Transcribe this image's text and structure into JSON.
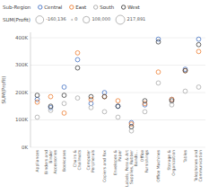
{
  "chart_data": {
    "type": "scatter",
    "legend_title": "Sub-Region",
    "y_label": "SUM(Profit)",
    "categories": [
      "Appliances",
      "Binders and\nBinder\nAccessories",
      "Bookcases",
      "Chairs &\nChailmats",
      "Computer\nPeripherals",
      "Copiers and Fax",
      "Envelopes &\nPaper",
      "Labels, Pens & Art\nSupplies, Rubber\nBands...",
      "Office\nFurnishings",
      "Office Machines",
      "Storage &\nOrganization",
      "Tables",
      "Telephones and\nCommunication"
    ],
    "series": [
      {
        "name": "Central",
        "color": "#4472C4",
        "values": [
          175000,
          145000,
          220000,
          320000,
          160000,
          200000,
          150000,
          90000,
          155000,
          395000,
          175000,
          285000,
          395000
        ]
      },
      {
        "name": "East",
        "color": "#ED7D31",
        "values": [
          165000,
          185000,
          125000,
          345000,
          175000,
          185000,
          170000,
          85000,
          160000,
          275000,
          175000,
          280000,
          350000
        ]
      },
      {
        "name": "South",
        "color": "#AAAAAA",
        "values": [
          110000,
          135000,
          160000,
          180000,
          145000,
          130000,
          110000,
          60000,
          130000,
          235000,
          155000,
          205000,
          220000
        ]
      },
      {
        "name": "West",
        "color": "#404040",
        "values": [
          190000,
          150000,
          190000,
          290000,
          185000,
          185000,
          150000,
          75000,
          170000,
          385000,
          170000,
          280000,
          375000
        ]
      }
    ],
    "size_legend": {
      "title": "SUM(Profit)",
      "items": [
        {
          "value": -160136,
          "label": "-160,136"
        },
        {
          "value": 0,
          "label": "0"
        },
        {
          "value": 108000,
          "label": "108,000"
        },
        {
          "value": 217891,
          "label": "217,891"
        }
      ]
    },
    "ylim": [
      0,
      420000
    ],
    "yticks": [
      {
        "value": 0,
        "label": "0K"
      },
      {
        "value": 100000,
        "label": "100K"
      },
      {
        "value": 200000,
        "label": "200K"
      },
      {
        "value": 300000,
        "label": "300K"
      },
      {
        "value": 400000,
        "label": "400K"
      }
    ],
    "grid": true,
    "legend": "top"
  }
}
